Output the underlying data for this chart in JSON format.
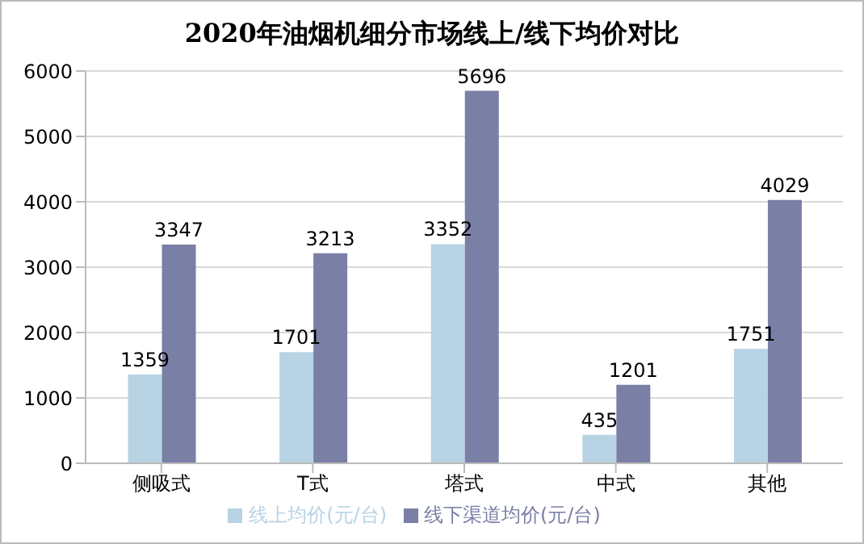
{
  "chart_data": {
    "type": "bar",
    "title": "2020年油烟机细分市场线上/线下均价对比",
    "categories": [
      "侧吸式",
      "T式",
      "塔式",
      "中式",
      "其他"
    ],
    "series": [
      {
        "name": "线上均价(元/台)",
        "color": "#b7d3e4",
        "values": [
          1359,
          1701,
          3352,
          435,
          1751
        ]
      },
      {
        "name": "线下渠道均价(元/台)",
        "color": "#7a7fa6",
        "values": [
          3347,
          3213,
          5696,
          1201,
          4029
        ]
      }
    ],
    "ylim": [
      0,
      6000
    ],
    "yticks": [
      0,
      1000,
      2000,
      3000,
      4000,
      5000,
      6000
    ],
    "grid": "y",
    "legend": "bottom",
    "data_labels": true
  }
}
